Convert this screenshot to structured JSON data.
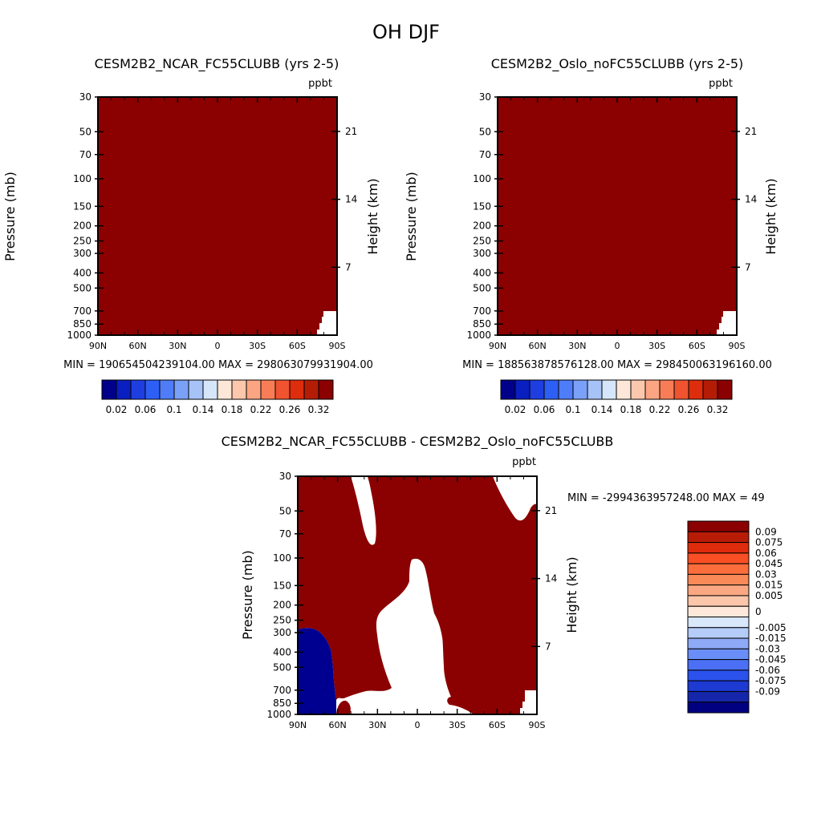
{
  "colors": {
    "fill_red": "#8b0000",
    "fill_blue": "#000090",
    "border": "#000000",
    "background": "#ffffff"
  },
  "chart_data": {
    "title": "OH DJF",
    "type": "contour",
    "x_ticks": [
      "90N",
      "60N",
      "30N",
      "0",
      "30S",
      "60S",
      "90S"
    ],
    "pressure_ticks": [
      30,
      50,
      70,
      100,
      150,
      200,
      250,
      300,
      400,
      500,
      700,
      850,
      1000
    ],
    "height_ticks": [
      21,
      14,
      7
    ],
    "left_label": "Pressure (mb)",
    "right_label": "Height (km)",
    "units": "ppbt",
    "panels": [
      {
        "title": "CESM2B2_NCAR_FC55CLUBB (yrs 2-5)",
        "min_max": "MIN = 190654504239104.00   MAX = 298063079931904.00",
        "units": "ppbt"
      },
      {
        "title": "CESM2B2_Oslo_noFC55CLUBB (yrs 2-5)",
        "min_max": "MIN = 188563878576128.00   MAX = 298450063196160.00",
        "units": "ppbt"
      },
      {
        "title": "CESM2B2_NCAR_FC55CLUBB - CESM2B2_Oslo_noFC55CLUBB",
        "min_max": "MIN = -2994363957248.00   MAX = 49",
        "units": "ppbt"
      }
    ],
    "abs_colorbar": {
      "colors": [
        "#00008b",
        "#0a1fbf",
        "#1e3ee0",
        "#2d5ff5",
        "#4f7df7",
        "#7aa0f7",
        "#a6c2f7",
        "#d5e6fb",
        "#fde7d8",
        "#fcc7ac",
        "#fba582",
        "#f87d57",
        "#f0532f",
        "#dd2d0d",
        "#b51c06",
        "#8b0000"
      ],
      "labels": [
        "0.02",
        "0.06",
        "0.1",
        "0.14",
        "0.18",
        "0.22",
        "0.26",
        "0.32"
      ]
    },
    "diff_colorbar": {
      "colors": [
        "#8b0000",
        "#b81c06",
        "#df2c0c",
        "#fa4f25",
        "#fb6d3b",
        "#f98a58",
        "#fba882",
        "#fcc6aa",
        "#fde8da",
        "#d9e7fb",
        "#b5cbf8",
        "#8ea9f6",
        "#6a8ef7",
        "#4b70f5",
        "#2b52ec",
        "#1d3ad2",
        "#1626aa",
        "#000080"
      ],
      "labels": [
        "0.09",
        "0.075",
        "0.06",
        "0.045",
        "0.03",
        "0.015",
        "0.005",
        "0",
        "-0.005",
        "-0.015",
        "-0.03",
        "-0.045",
        "-0.06",
        "-0.075",
        "-0.09"
      ]
    }
  }
}
